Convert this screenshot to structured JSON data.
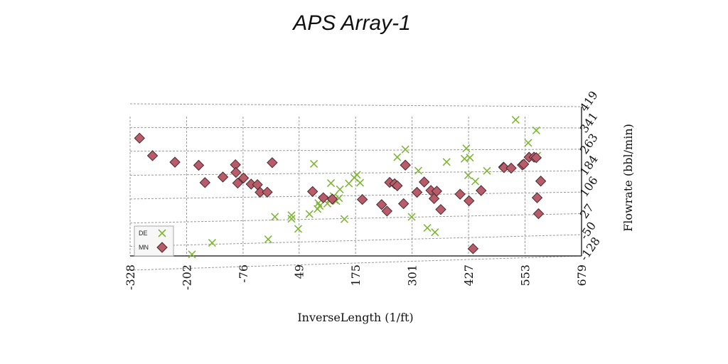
{
  "chart_data": {
    "type": "scatter",
    "title": "APS Array-1",
    "xlabel": "InverseLength (1/ft)",
    "ylabel": "Flowrate (bbl/min)",
    "xlim": [
      -328,
      679
    ],
    "ylim": [
      -128,
      419
    ],
    "x_ticks": [
      "-328",
      "-202",
      "-76",
      "49",
      "175",
      "301",
      "427",
      "553",
      "679"
    ],
    "x_tick_values": [
      -328,
      -202,
      -76,
      49,
      175,
      301,
      427,
      553,
      679
    ],
    "y_ticks": [
      "-128",
      "-50",
      "27",
      "106",
      "184",
      "263",
      "341",
      "419"
    ],
    "y_tick_values": [
      -128,
      -50,
      27,
      106,
      184,
      263,
      341,
      419
    ],
    "grid": true,
    "legend": {
      "placement": "bottom-left",
      "entries": [
        {
          "label": "DE",
          "marker": "x",
          "color": "#7fb636"
        },
        {
          "label": "MN",
          "marker": "diamond",
          "color": "#b85c6a"
        }
      ]
    },
    "series": [
      {
        "name": "DE",
        "marker": "x",
        "color": "#7fb636",
        "points": [
          [
            -190,
            -82
          ],
          [
            -145,
            -45
          ],
          [
            -20,
            -38
          ],
          [
            -5,
            38
          ],
          [
            32,
            30
          ],
          [
            32,
            42
          ],
          [
            47,
            -5
          ],
          [
            72,
            45
          ],
          [
            82,
            217
          ],
          [
            90,
            62
          ],
          [
            92,
            82
          ],
          [
            95,
            72
          ],
          [
            112,
            80
          ],
          [
            118,
            95
          ],
          [
            120,
            150
          ],
          [
            126,
            105
          ],
          [
            128,
            92
          ],
          [
            132,
            88
          ],
          [
            138,
            98
          ],
          [
            140,
            128
          ],
          [
            150,
            25
          ],
          [
            160,
            148
          ],
          [
            172,
            168
          ],
          [
            178,
            178
          ],
          [
            185,
            150
          ],
          [
            268,
            238
          ],
          [
            286,
            265
          ],
          [
            300,
            28
          ],
          [
            315,
            190
          ],
          [
            335,
            -12
          ],
          [
            352,
            -28
          ],
          [
            378,
            220
          ],
          [
            418,
            231
          ],
          [
            422,
            268
          ],
          [
            426,
            172
          ],
          [
            430,
            235
          ],
          [
            442,
            150
          ],
          [
            468,
            187
          ],
          [
            532,
            370
          ],
          [
            560,
            287
          ],
          [
            578,
            332
          ],
          [
            580,
            240
          ]
        ]
      },
      {
        "name": "MN",
        "marker": "diamond",
        "color": "#b85c6a",
        "points": [
          [
            -307,
            306
          ],
          [
            -278,
            248
          ],
          [
            -228,
            226
          ],
          [
            -175,
            215
          ],
          [
            -161,
            157
          ],
          [
            -121,
            175
          ],
          [
            -93,
            216
          ],
          [
            -92,
            190
          ],
          [
            -88,
            154
          ],
          [
            -75,
            171
          ],
          [
            -58,
            150
          ],
          [
            -44,
            148
          ],
          [
            -38,
            122
          ],
          [
            -22,
            122
          ],
          [
            -11,
            222
          ],
          [
            79,
            122
          ],
          [
            103,
            100
          ],
          [
            123,
            95
          ],
          [
            190,
            92
          ],
          [
            233,
            73
          ],
          [
            245,
            50
          ],
          [
            251,
            150
          ],
          [
            262,
            145
          ],
          [
            268,
            138
          ],
          [
            282,
            75
          ],
          [
            286,
            210
          ],
          [
            312,
            114
          ],
          [
            328,
            150
          ],
          [
            343,
            120
          ],
          [
            350,
            91
          ],
          [
            356,
            117
          ],
          [
            365,
            52
          ],
          [
            408,
            105
          ],
          [
            428,
            81
          ],
          [
            437,
            -90
          ],
          [
            455,
            117
          ],
          [
            505,
            200
          ],
          [
            506,
            198
          ],
          [
            522,
            196
          ],
          [
            547,
            207
          ],
          [
            550,
            210
          ],
          [
            562,
            235
          ],
          [
            573,
            235
          ],
          [
            578,
            233
          ],
          [
            580,
            88
          ],
          [
            583,
            30
          ],
          [
            588,
            148
          ]
        ]
      }
    ]
  }
}
